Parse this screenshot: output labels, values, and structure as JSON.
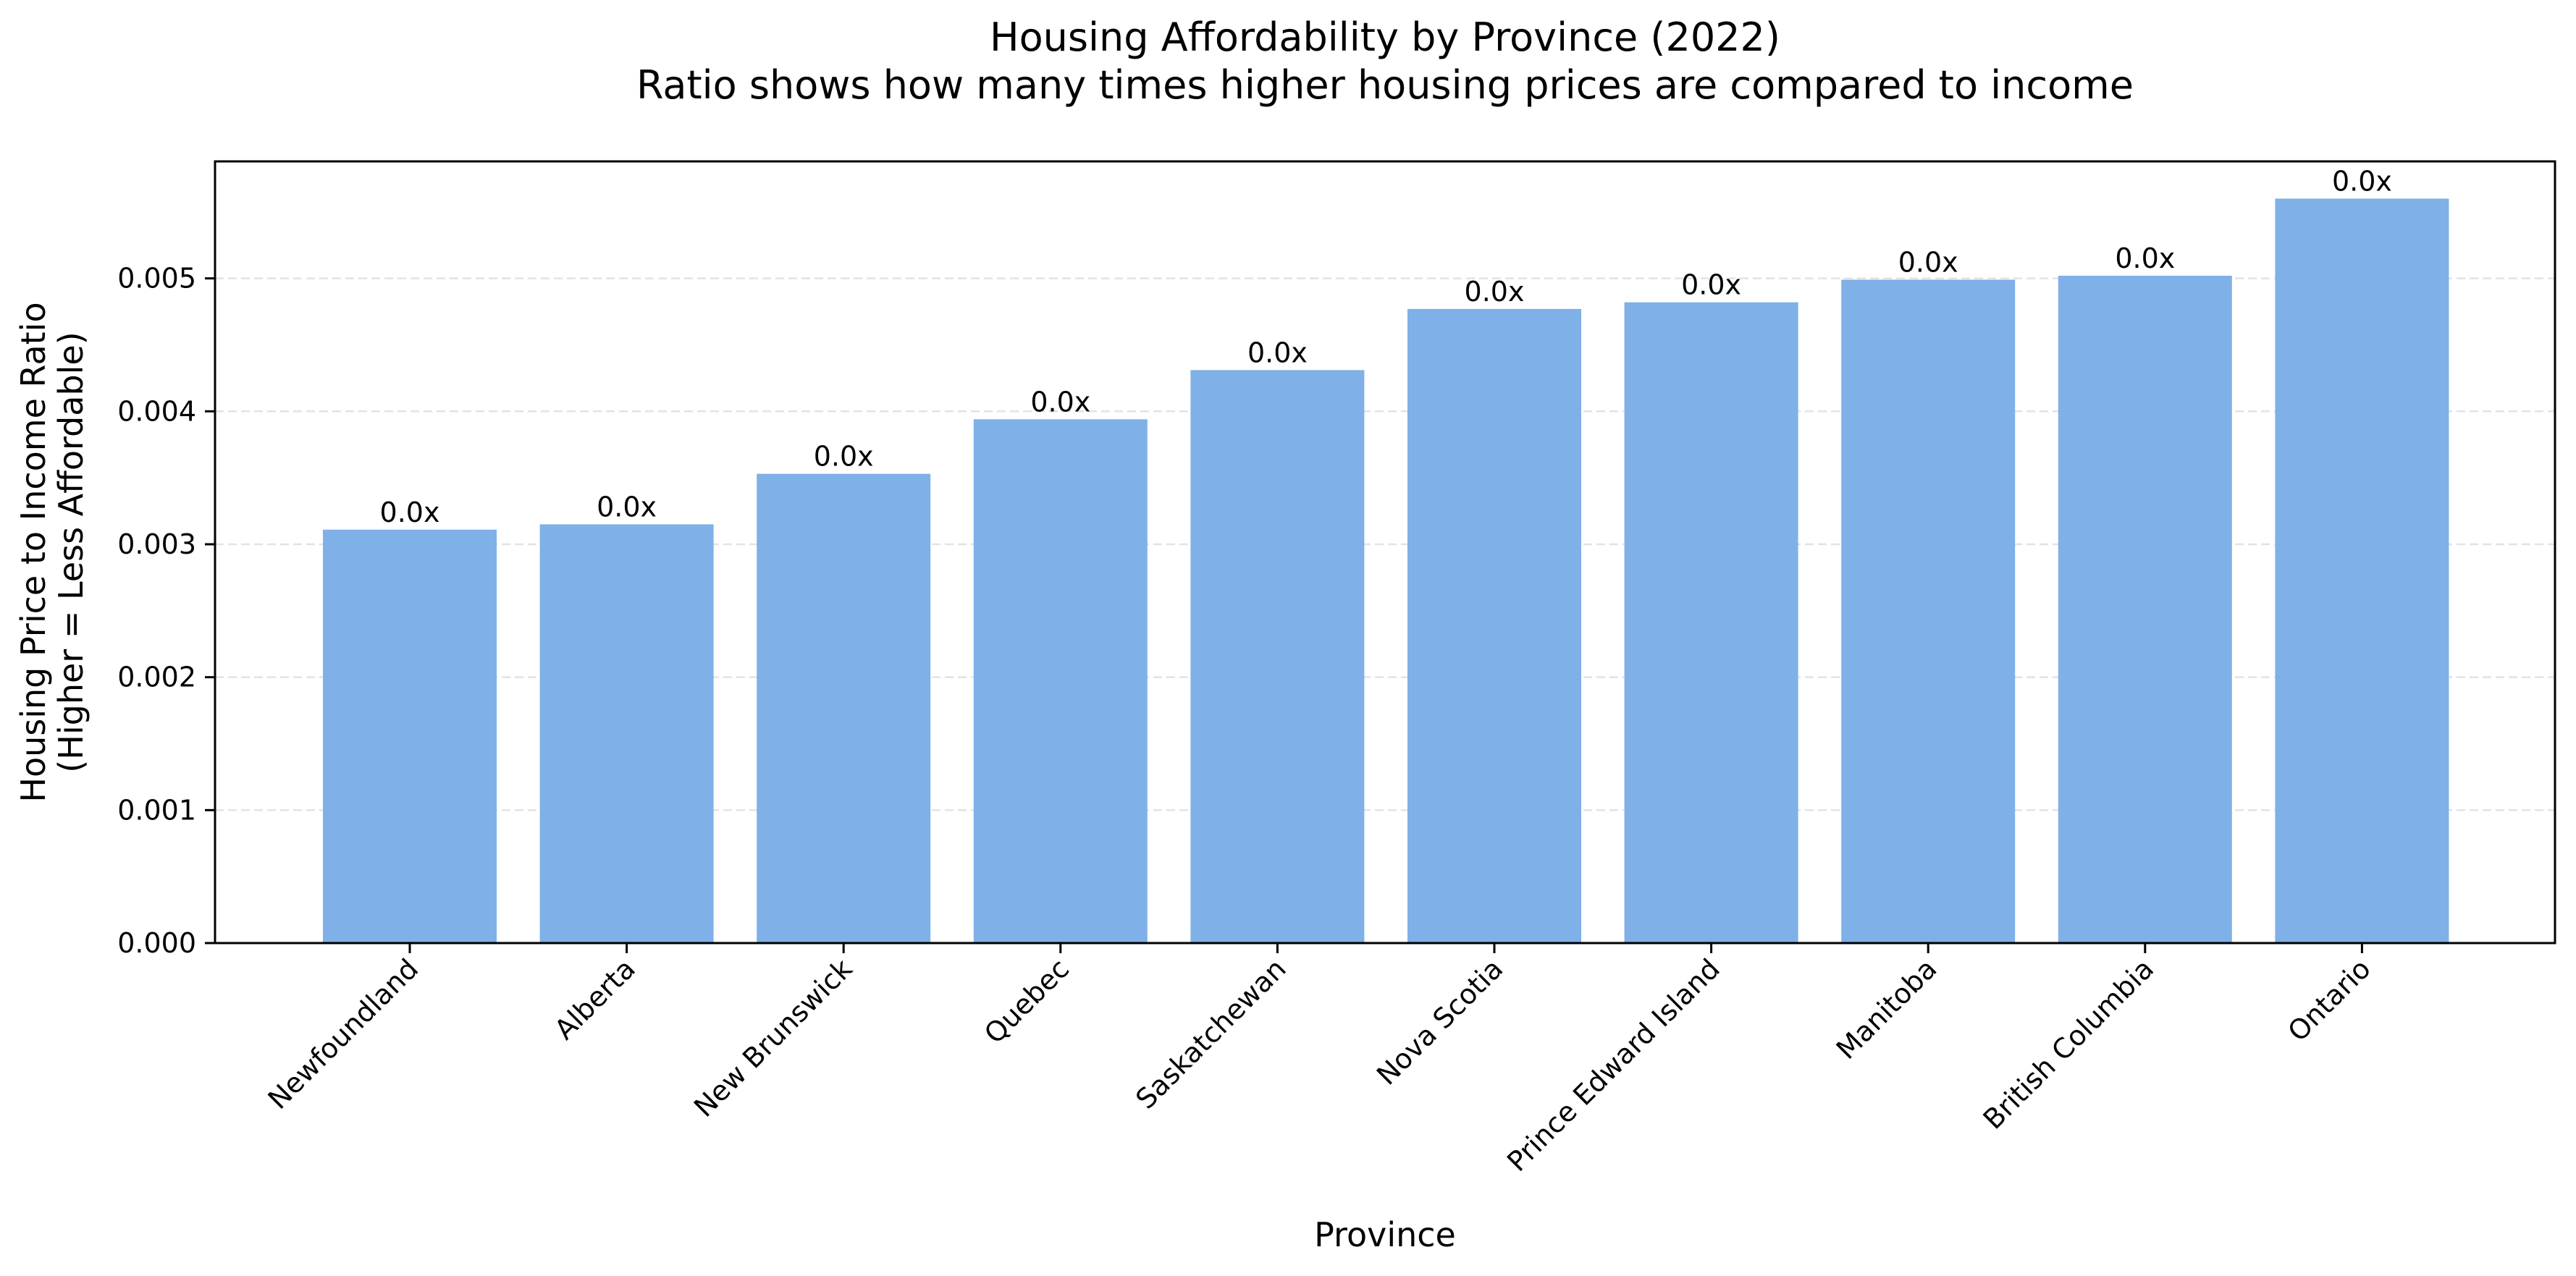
{
  "chart_data": {
    "type": "bar",
    "title": "Housing Affordability by Province (2022)",
    "subtitle": "Ratio shows how many times higher housing prices are compared to income",
    "xlabel": "Province",
    "ylabel": [
      "Housing Price to Income Ratio",
      "(Higher = Less Affordable)"
    ],
    "categories": [
      "Newfoundland",
      "Alberta",
      "New Brunswick",
      "Quebec",
      "Saskatchewan",
      "Nova Scotia",
      "Prince Edward Island",
      "Manitoba",
      "British Columbia",
      "Ontario"
    ],
    "values": [
      0.00311,
      0.00315,
      0.00353,
      0.00394,
      0.00431,
      0.00477,
      0.00482,
      0.00499,
      0.00502,
      0.0056
    ],
    "data_labels": [
      "0.0x",
      "0.0x",
      "0.0x",
      "0.0x",
      "0.0x",
      "0.0x",
      "0.0x",
      "0.0x",
      "0.0x",
      "0.0x"
    ],
    "ylim": [
      0,
      0.00588
    ],
    "yticks": [
      0,
      0.001,
      0.002,
      0.003,
      0.004,
      0.005
    ],
    "ytick_labels": [
      "0.000",
      "0.001",
      "0.002",
      "0.003",
      "0.004",
      "0.005"
    ],
    "bar_color": "#7fb0e8",
    "grid": "horizontal dashed",
    "legend": "none"
  }
}
